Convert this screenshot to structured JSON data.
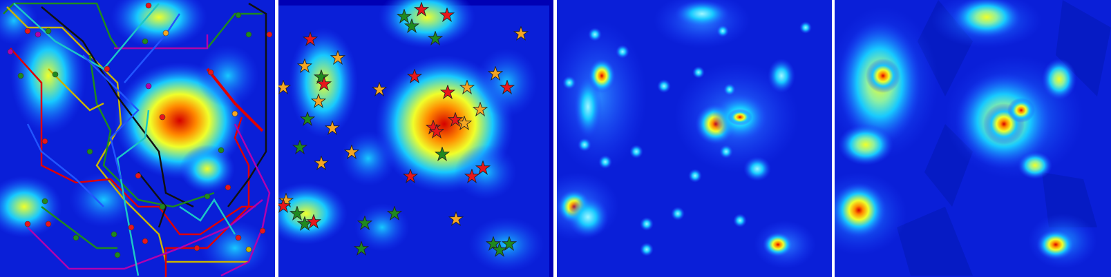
{
  "panels": [
    {
      "name": "heatmap-with-routes",
      "overlay": "routes-and-stars"
    },
    {
      "name": "heatmap-with-stars",
      "overlay": "stars"
    },
    {
      "name": "smooth-heatmap",
      "overlay": "none"
    },
    {
      "name": "faceted-heatmap",
      "overlay": "none"
    }
  ],
  "colors": {
    "background": "#0000b4",
    "low": "#1e3cff",
    "mid": "#17c9ff",
    "high_mid": "#f0ff2a",
    "hot": "#ff8800",
    "peak": "#d40000",
    "star_red": "#e8161b",
    "star_orange": "#f5a623",
    "star_green": "#1f8a1f",
    "route_colors": [
      "#e00000",
      "#1e8a1e",
      "#111111",
      "#b000b0",
      "#c9b400",
      "#1bc7c7",
      "#2255ff"
    ]
  },
  "icons": {
    "star": "star-icon"
  }
}
